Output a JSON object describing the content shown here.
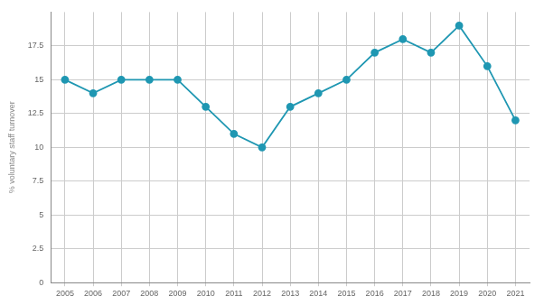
{
  "chart_data": {
    "type": "line",
    "y_label": "% voluntary staff turnover",
    "categories": [
      "2005",
      "2006",
      "2007",
      "2008",
      "2009",
      "2010",
      "2011",
      "2012",
      "2013",
      "2014",
      "2015",
      "2016",
      "2017",
      "2018",
      "2019",
      "2020",
      "2021"
    ],
    "values": [
      15,
      14,
      15,
      15,
      15,
      13,
      11,
      10,
      13,
      14,
      15,
      17,
      18,
      17,
      19,
      16,
      12
    ],
    "color": "#1f97b2",
    "marker": "circle",
    "ylim": [
      0,
      20
    ],
    "yticks": [
      0,
      2.5,
      5,
      7.5,
      10,
      12.5,
      15,
      17.5
    ],
    "grid": true
  }
}
